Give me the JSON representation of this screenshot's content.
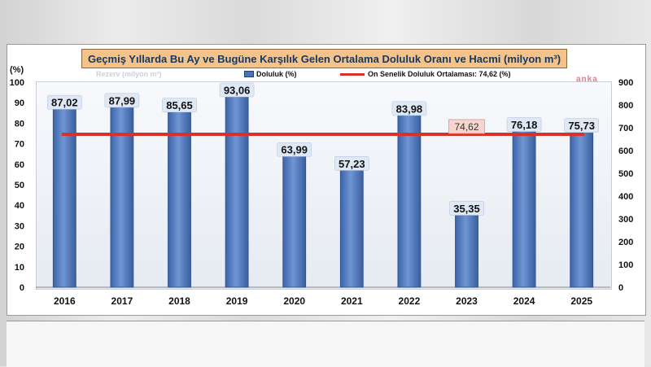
{
  "chart_data": {
    "type": "bar",
    "title": "Geçmiş Yıllarda Bu Ay ve Bugüne Karşılık Gelen Ortalama Doluluk Oranı ve Hacmi (milyon m³)",
    "categories": [
      "2016",
      "2017",
      "2018",
      "2019",
      "2020",
      "2021",
      "2022",
      "2023",
      "2024",
      "2025"
    ],
    "series": [
      {
        "name": "Doluluk (%)",
        "values": [
          87.02,
          87.99,
          85.65,
          93.06,
          63.99,
          57.23,
          83.98,
          35.35,
          76.18,
          75.73
        ],
        "color": "#4a74b8"
      }
    ],
    "value_labels": [
      "87,02",
      "87,99",
      "85,65",
      "93,06",
      "63,99",
      "57,23",
      "83,98",
      "35,35",
      "76,18",
      "75,73"
    ],
    "reference_line": {
      "name": "On Senelik Doluluk Ortalaması: 74,62 (%)",
      "value": 74.62,
      "label": "74,62",
      "color": "#d9302a"
    },
    "ylabel_left": "(%)",
    "ylim_left": [
      0,
      100
    ],
    "yticks_left": [
      "0",
      "10",
      "20",
      "30",
      "40",
      "50",
      "60",
      "70",
      "80",
      "90",
      "100"
    ],
    "ylim_right": [
      0,
      900
    ],
    "yticks_right": [
      "0",
      "100",
      "200",
      "300",
      "400",
      "500",
      "600",
      "700",
      "800",
      "900"
    ],
    "ghost_series_label": "Rezerv (milyon m³)",
    "legend_position": "top",
    "grid": false
  },
  "watermark": "anka"
}
